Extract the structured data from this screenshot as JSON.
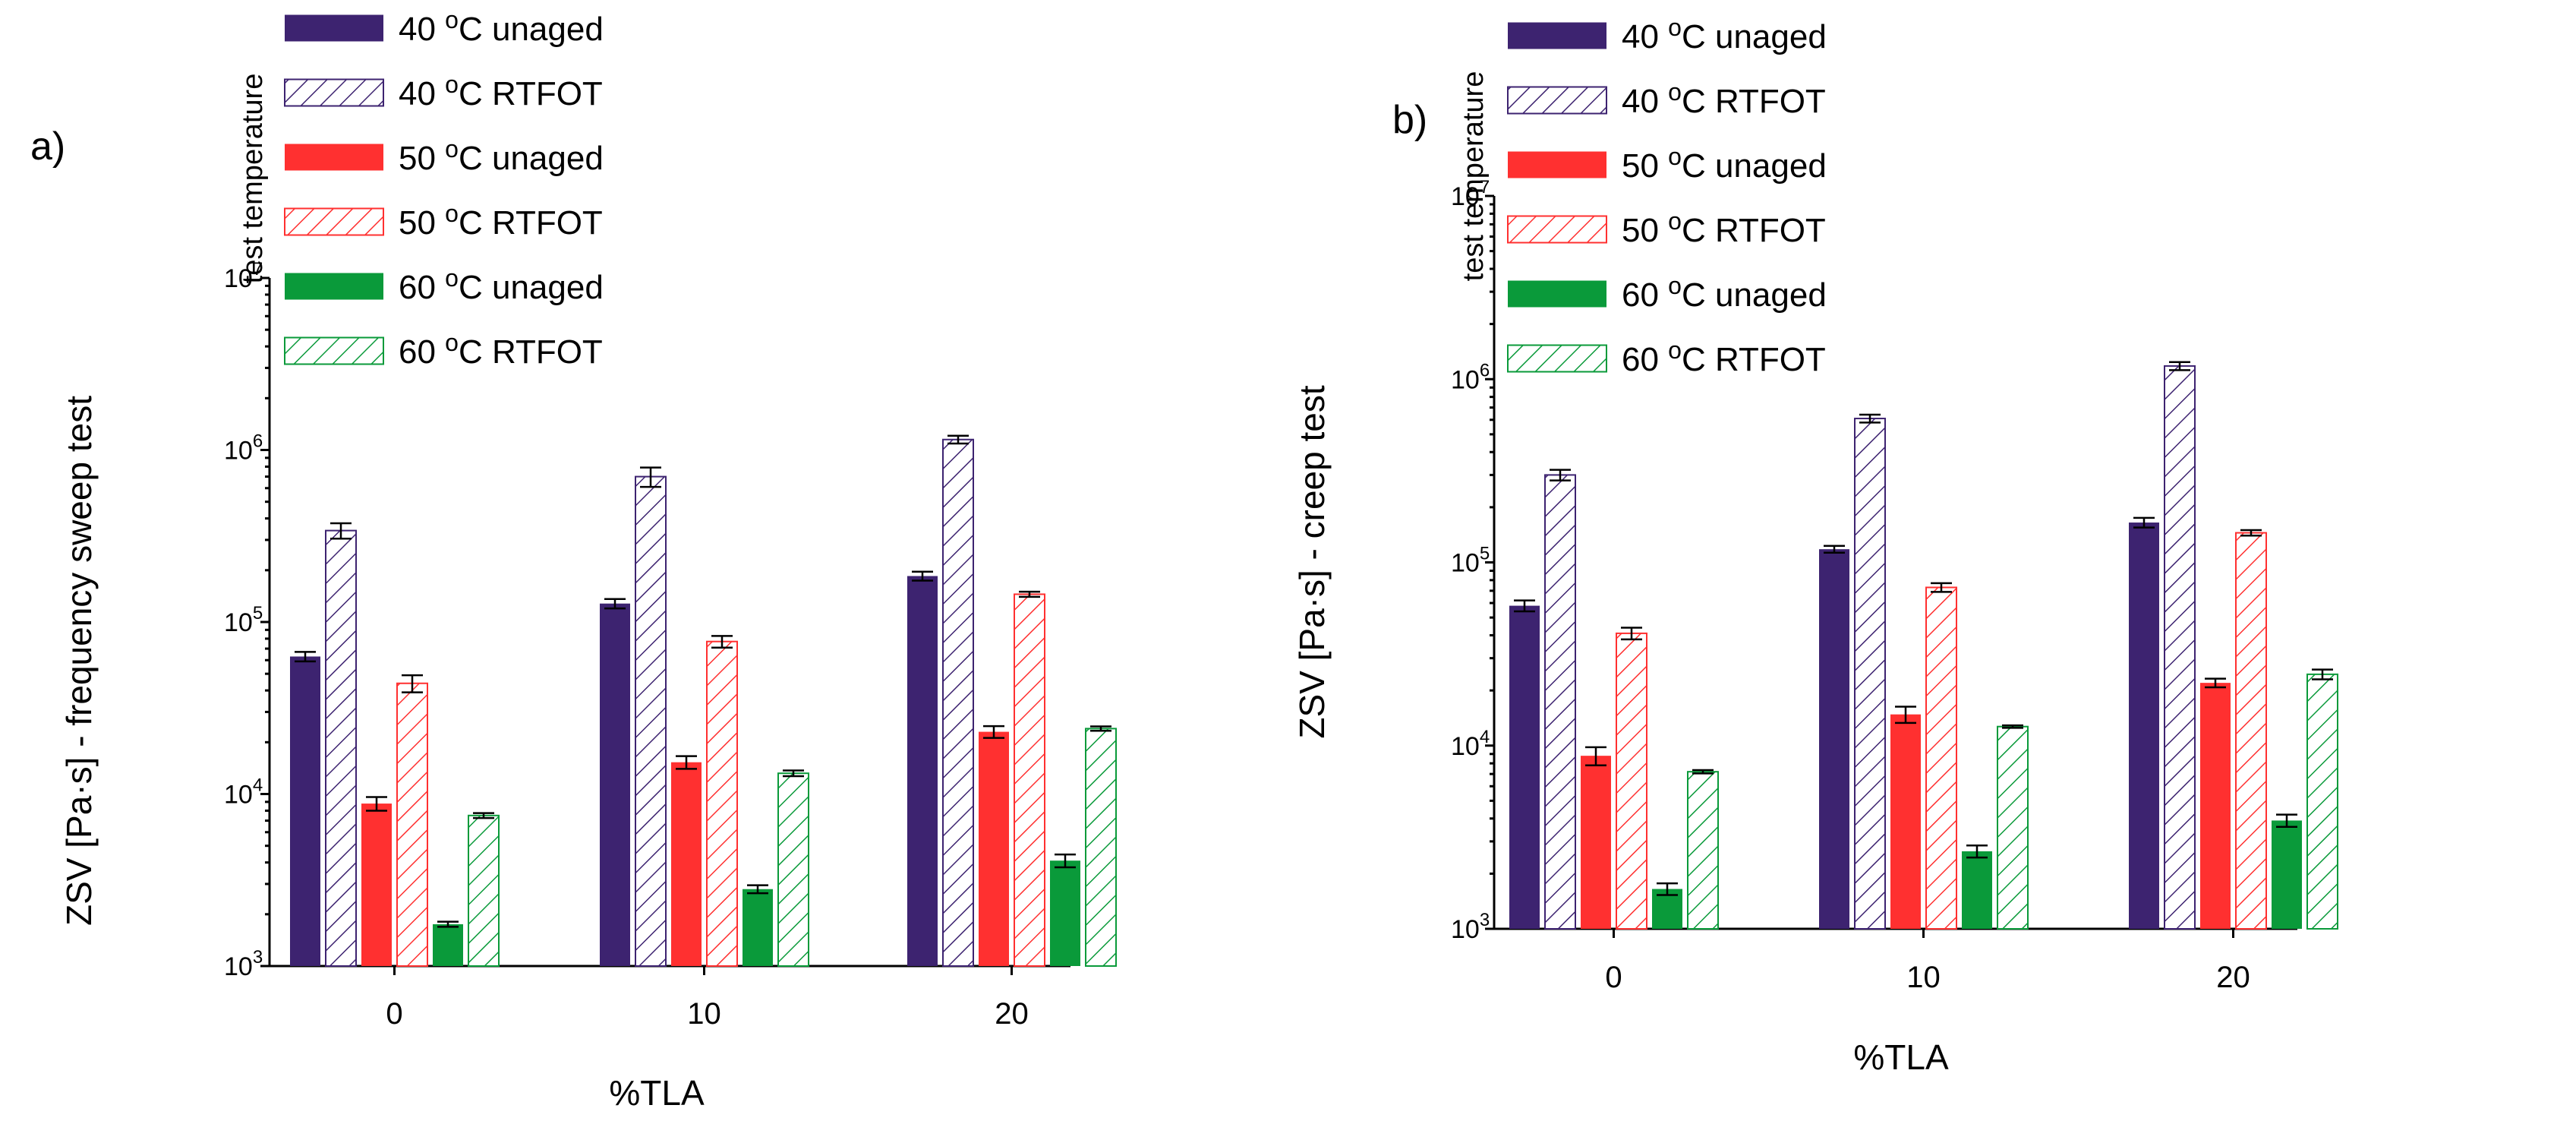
{
  "chart_data": [
    {
      "type": "bar",
      "panel_label": "a)",
      "ylabel": "ZSV [Pa·s] - frequency sweep test",
      "xlabel": "%TLA",
      "yscale": "log",
      "ylim": [
        1000,
        10000000
      ],
      "yticks": [
        {
          "value": 1000,
          "base": "10",
          "exp": "3"
        },
        {
          "value": 10000,
          "base": "10",
          "exp": "4"
        },
        {
          "value": 100000,
          "base": "10",
          "exp": "5"
        },
        {
          "value": 1000000,
          "base": "10",
          "exp": "6"
        },
        {
          "value": 10000000,
          "base": "10",
          "exp": "7"
        }
      ],
      "categories": [
        "0",
        "10",
        "20"
      ],
      "legend_title": "test temperature",
      "legend_position": "top",
      "series": [
        {
          "name": "40 °C unaged",
          "temp": "40",
          "deg": "o",
          "unit": "C",
          "condition": "unaged",
          "color": "#3d2370",
          "pattern": "solid",
          "values": [
            63000,
            128000,
            185000
          ],
          "errors": [
            4000,
            8000,
            11000
          ]
        },
        {
          "name": "40 °C RTFOT",
          "temp": "40",
          "deg": "o",
          "unit": "C",
          "condition": "RTFOT",
          "color": "#3d2370",
          "pattern": "hatch",
          "values": [
            340000,
            700000,
            1150000
          ],
          "errors": [
            35000,
            90000,
            60000
          ]
        },
        {
          "name": "50 °C unaged",
          "temp": "50",
          "deg": "o",
          "unit": "C",
          "condition": "unaged",
          "color": "#ff3030",
          "pattern": "solid",
          "values": [
            8800,
            15300,
            23000
          ],
          "errors": [
            800,
            1300,
            1800
          ]
        },
        {
          "name": "50 °C RTFOT",
          "temp": "50",
          "deg": "o",
          "unit": "C",
          "condition": "RTFOT",
          "color": "#ff3030",
          "pattern": "hatch",
          "values": [
            44000,
            77000,
            145000
          ],
          "errors": [
            5000,
            6000,
            5000
          ]
        },
        {
          "name": "60 °C unaged",
          "temp": "60",
          "deg": "o",
          "unit": "C",
          "condition": "unaged",
          "color": "#0a9a3a",
          "pattern": "solid",
          "values": [
            1750,
            2800,
            4100
          ],
          "errors": [
            60,
            150,
            350
          ]
        },
        {
          "name": "60 °C RTFOT",
          "temp": "60",
          "deg": "o",
          "unit": "C",
          "condition": "RTFOT",
          "color": "#0a9a3a",
          "pattern": "hatch",
          "values": [
            7500,
            13200,
            24000
          ],
          "errors": [
            250,
            500,
            700
          ]
        }
      ]
    },
    {
      "type": "bar",
      "panel_label": "b)",
      "ylabel": "ZSV [Pa·s] - creep test",
      "xlabel": "%TLA",
      "yscale": "log",
      "ylim": [
        1000,
        10000000
      ],
      "yticks": [
        {
          "value": 1000,
          "base": "10",
          "exp": "3"
        },
        {
          "value": 10000,
          "base": "10",
          "exp": "4"
        },
        {
          "value": 100000,
          "base": "10",
          "exp": "5"
        },
        {
          "value": 1000000,
          "base": "10",
          "exp": "6"
        },
        {
          "value": 10000000,
          "base": "10",
          "exp": "7"
        }
      ],
      "categories": [
        "0",
        "10",
        "20"
      ],
      "legend_title": "test temperature",
      "legend_position": "top",
      "series": [
        {
          "name": "40 °C unaged",
          "temp": "40",
          "deg": "o",
          "unit": "C",
          "condition": "unaged",
          "color": "#3d2370",
          "pattern": "solid",
          "values": [
            58000,
            118000,
            165000
          ],
          "errors": [
            4000,
            5000,
            10000
          ]
        },
        {
          "name": "40 °C RTFOT",
          "temp": "40",
          "deg": "o",
          "unit": "C",
          "condition": "RTFOT",
          "color": "#3d2370",
          "pattern": "hatch",
          "values": [
            300000,
            610000,
            1180000
          ],
          "errors": [
            20000,
            30000,
            60000
          ]
        },
        {
          "name": "50 °C unaged",
          "temp": "50",
          "deg": "o",
          "unit": "C",
          "condition": "unaged",
          "color": "#ff3030",
          "pattern": "solid",
          "values": [
            8800,
            14800,
            22000
          ],
          "errors": [
            1000,
            1500,
            1200
          ]
        },
        {
          "name": "50 °C RTFOT",
          "temp": "50",
          "deg": "o",
          "unit": "C",
          "condition": "RTFOT",
          "color": "#ff3030",
          "pattern": "hatch",
          "values": [
            41000,
            73000,
            145000
          ],
          "errors": [
            3000,
            4000,
            5000
          ]
        },
        {
          "name": "60 °C unaged",
          "temp": "60",
          "deg": "o",
          "unit": "C",
          "condition": "unaged",
          "color": "#0a9a3a",
          "pattern": "solid",
          "values": [
            1650,
            2650,
            3900
          ],
          "errors": [
            120,
            200,
            300
          ]
        },
        {
          "name": "60 °C RTFOT",
          "temp": "60",
          "deg": "o",
          "unit": "C",
          "condition": "RTFOT",
          "color": "#0a9a3a",
          "pattern": "hatch",
          "values": [
            7200,
            12700,
            24500
          ],
          "errors": [
            150,
            200,
            1500
          ]
        }
      ]
    }
  ]
}
